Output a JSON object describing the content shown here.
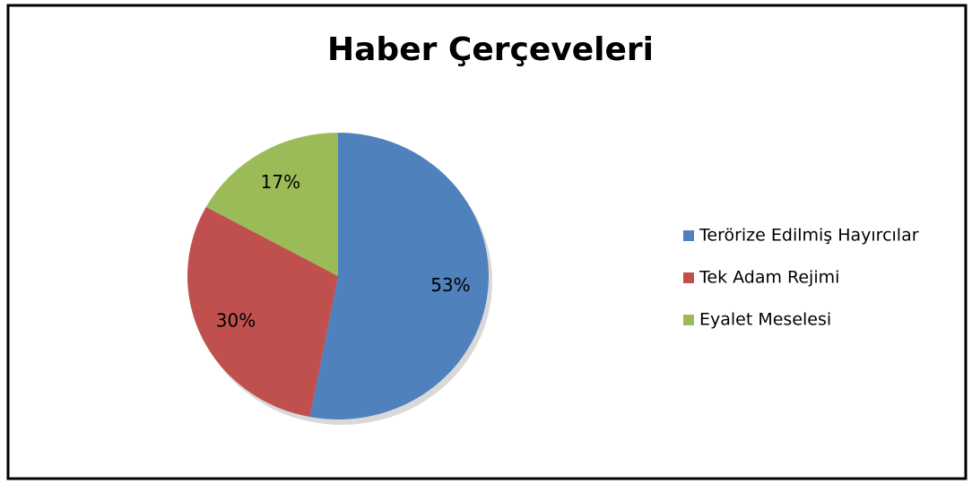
{
  "chart_data": {
    "type": "pie",
    "title": "Haber Çerçeveleri",
    "categories": [
      "Terörize Edilmiş Hayırcılar",
      "Tek Adam Rejimi",
      "Eyalet Meselesi"
    ],
    "values": [
      53,
      30,
      17
    ],
    "value_labels": [
      "53%",
      "30%",
      "17%"
    ],
    "colors": [
      "#4f81bd",
      "#c0504d",
      "#9bbb59"
    ],
    "legend": "right"
  }
}
